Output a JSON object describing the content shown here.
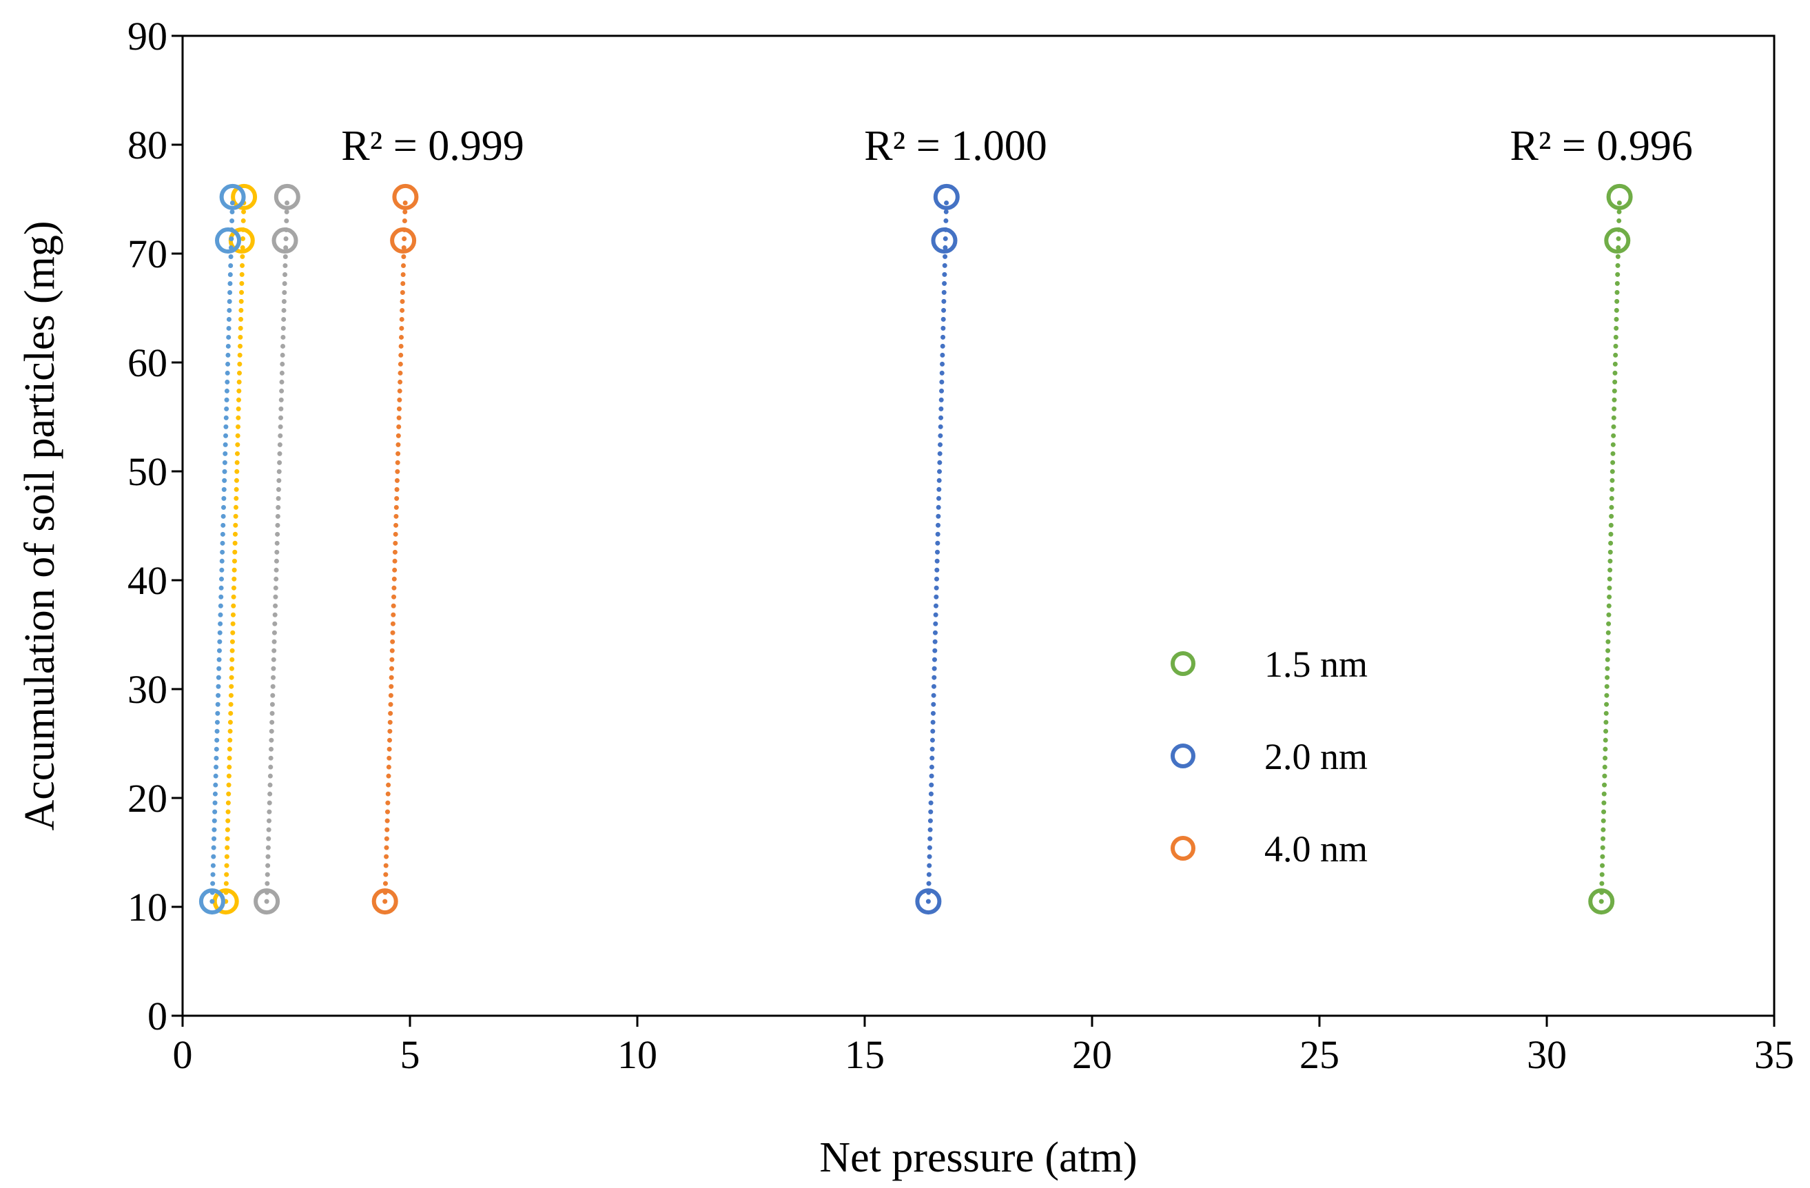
{
  "chart_data": {
    "type": "scatter",
    "title": "",
    "xlabel": "Net pressure (atm)",
    "ylabel": "Accumulation  of soil particles (mg)",
    "xlim": [
      0,
      35
    ],
    "ylim": [
      0,
      90
    ],
    "xticks": [
      0,
      5,
      10,
      15,
      20,
      25,
      30,
      35
    ],
    "yticks": [
      0,
      10,
      20,
      30,
      40,
      50,
      60,
      70,
      80,
      90
    ],
    "xtick_labels": [
      "0",
      "5",
      "10",
      "15",
      "20",
      "25",
      "30",
      "35"
    ],
    "ytick_labels": [
      "0",
      "10",
      "20",
      "30",
      "40",
      "50",
      "60",
      "70",
      "80",
      "90"
    ],
    "grid": false,
    "legend_position": "center-right",
    "series": [
      {
        "name": "1.5 nm",
        "color": "#70AD47",
        "in_legend": true,
        "x": [
          31.2,
          31.55,
          31.6
        ],
        "y": [
          10.5,
          71.2,
          75.2
        ]
      },
      {
        "name": "2.0 nm",
        "color": "#4472C4",
        "in_legend": true,
        "x": [
          16.4,
          16.75,
          16.8
        ],
        "y": [
          10.5,
          71.2,
          75.2
        ]
      },
      {
        "name": "4.0 nm",
        "color": "#ED7D31",
        "in_legend": true,
        "x": [
          4.45,
          4.85,
          4.9
        ],
        "y": [
          10.5,
          71.2,
          75.2
        ]
      },
      {
        "name": "gray series",
        "color": "#A5A5A5",
        "in_legend": false,
        "x": [
          1.85,
          2.25,
          2.3
        ],
        "y": [
          10.5,
          71.2,
          75.2
        ]
      },
      {
        "name": "gold series",
        "color": "#FFC000",
        "in_legend": false,
        "x": [
          0.95,
          1.3,
          1.35
        ],
        "y": [
          10.5,
          71.2,
          75.2
        ]
      },
      {
        "name": "light blue series",
        "color": "#5B9BD5",
        "in_legend": false,
        "x": [
          0.65,
          1.0,
          1.1
        ],
        "y": [
          10.5,
          71.2,
          75.2
        ]
      }
    ],
    "annotations": [
      {
        "text": "R² = 0.999",
        "x": 5.5,
        "y": 80
      },
      {
        "text": "R² = 1.000",
        "x": 17.0,
        "y": 80
      },
      {
        "text": "R² = 0.996",
        "x": 31.2,
        "y": 80
      }
    ]
  }
}
